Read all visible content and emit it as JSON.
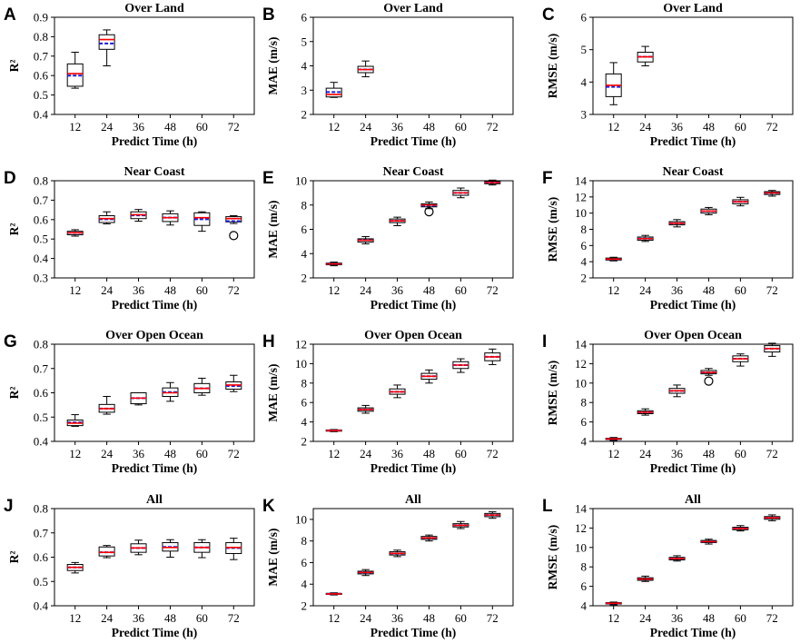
{
  "figure": {
    "colors": {
      "median": "#ff0000",
      "mean": "#1f1fd6",
      "box": "#000000",
      "outlier": "#000000"
    }
  },
  "chart_data": [
    {
      "panel": "A",
      "type": "box",
      "title": "Over Land",
      "xlabel": "Predict Time (h)",
      "ylabel": "R²",
      "categories": [
        "12",
        "24",
        "36",
        "48",
        "60",
        "72"
      ],
      "ylim": [
        0.4,
        0.9
      ],
      "yticks": [
        "0.4",
        "0.5",
        "0.6",
        "0.7",
        "0.8",
        "0.9"
      ],
      "boxes": [
        {
          "x": "12",
          "whislo": 0.535,
          "q1": 0.545,
          "median": 0.61,
          "mean": 0.6,
          "q3": 0.66,
          "whishi": 0.72,
          "outliers": []
        },
        {
          "x": "24",
          "whislo": 0.65,
          "q1": 0.735,
          "median": 0.785,
          "mean": 0.765,
          "q3": 0.81,
          "whishi": 0.835,
          "outliers": []
        }
      ]
    },
    {
      "panel": "B",
      "type": "box",
      "title": "Over Land",
      "xlabel": "Predict Time (h)",
      "ylabel": "MAE (m/s)",
      "categories": [
        "12",
        "24",
        "36",
        "48",
        "60",
        "72"
      ],
      "ylim": [
        2,
        6
      ],
      "yticks": [
        "2",
        "3",
        "4",
        "5",
        "6"
      ],
      "boxes": [
        {
          "x": "12",
          "whislo": 2.7,
          "q1": 2.72,
          "median": 2.82,
          "mean": 2.92,
          "q3": 3.08,
          "whishi": 3.32,
          "outliers": []
        },
        {
          "x": "24",
          "whislo": 3.55,
          "q1": 3.72,
          "median": 3.85,
          "mean": 3.85,
          "q3": 3.98,
          "whishi": 4.2,
          "outliers": []
        }
      ]
    },
    {
      "panel": "C",
      "type": "box",
      "title": "Over Land",
      "xlabel": "Predict Time (h)",
      "ylabel": "RMSE (m/s)",
      "categories": [
        "12",
        "24",
        "36",
        "48",
        "60",
        "72"
      ],
      "ylim": [
        3,
        6
      ],
      "yticks": [
        "3",
        "4",
        "5",
        "6"
      ],
      "boxes": [
        {
          "x": "12",
          "whislo": 3.3,
          "q1": 3.55,
          "median": 3.9,
          "mean": 3.85,
          "q3": 4.25,
          "whishi": 4.6,
          "outliers": []
        },
        {
          "x": "24",
          "whislo": 4.5,
          "q1": 4.62,
          "median": 4.78,
          "mean": 4.78,
          "q3": 4.92,
          "whishi": 5.1,
          "outliers": []
        }
      ]
    },
    {
      "panel": "D",
      "type": "box",
      "title": "Near Coast",
      "xlabel": "Predict Time (h)",
      "ylabel": "R²",
      "categories": [
        "12",
        "24",
        "36",
        "48",
        "60",
        "72"
      ],
      "ylim": [
        0.3,
        0.8
      ],
      "yticks": [
        "0.3",
        "0.4",
        "0.5",
        "0.6",
        "0.7",
        "0.8"
      ],
      "boxes": [
        {
          "x": "12",
          "whislo": 0.515,
          "q1": 0.522,
          "median": 0.532,
          "mean": 0.532,
          "q3": 0.54,
          "whishi": 0.548,
          "outliers": []
        },
        {
          "x": "24",
          "whislo": 0.578,
          "q1": 0.585,
          "median": 0.605,
          "mean": 0.602,
          "q3": 0.62,
          "whishi": 0.64,
          "outliers": []
        },
        {
          "x": "36",
          "whislo": 0.592,
          "q1": 0.605,
          "median": 0.625,
          "mean": 0.622,
          "q3": 0.64,
          "whishi": 0.652,
          "outliers": []
        },
        {
          "x": "48",
          "whislo": 0.572,
          "q1": 0.59,
          "median": 0.61,
          "mean": 0.61,
          "q3": 0.63,
          "whishi": 0.645,
          "outliers": []
        },
        {
          "x": "60",
          "whislo": 0.54,
          "q1": 0.57,
          "median": 0.61,
          "mean": 0.602,
          "q3": 0.635,
          "whishi": 0.64,
          "outliers": []
        },
        {
          "x": "72",
          "whislo": 0.58,
          "q1": 0.588,
          "median": 0.605,
          "mean": 0.592,
          "q3": 0.615,
          "whishi": 0.62,
          "outliers": [
            0.518
          ]
        }
      ]
    },
    {
      "panel": "E",
      "type": "box",
      "title": "Near Coast",
      "xlabel": "Predict Time (h)",
      "ylabel": "MAE (m/s)",
      "categories": [
        "12",
        "24",
        "36",
        "48",
        "60",
        "72"
      ],
      "ylim": [
        2,
        10
      ],
      "yticks": [
        "2",
        "4",
        "6",
        "8",
        "10"
      ],
      "boxes": [
        {
          "x": "12",
          "whislo": 3.0,
          "q1": 3.08,
          "median": 3.15,
          "mean": 3.15,
          "q3": 3.22,
          "whishi": 3.3,
          "outliers": []
        },
        {
          "x": "24",
          "whislo": 4.8,
          "q1": 4.95,
          "median": 5.1,
          "mean": 5.1,
          "q3": 5.22,
          "whishi": 5.4,
          "outliers": []
        },
        {
          "x": "36",
          "whislo": 6.3,
          "q1": 6.55,
          "median": 6.7,
          "mean": 6.7,
          "q3": 6.85,
          "whishi": 7.0,
          "outliers": []
        },
        {
          "x": "48",
          "whislo": 7.7,
          "q1": 7.85,
          "median": 8.0,
          "mean": 7.95,
          "q3": 8.1,
          "whishi": 8.25,
          "outliers": [
            7.45
          ]
        },
        {
          "x": "60",
          "whislo": 8.6,
          "q1": 8.8,
          "median": 9.0,
          "mean": 9.0,
          "q3": 9.2,
          "whishi": 9.4,
          "outliers": []
        },
        {
          "x": "72",
          "whislo": 9.65,
          "q1": 9.75,
          "median": 9.85,
          "mean": 9.85,
          "q3": 9.95,
          "whishi": 10.05,
          "outliers": []
        }
      ]
    },
    {
      "panel": "F",
      "type": "box",
      "title": "Near Coast",
      "xlabel": "Predict Time (h)",
      "ylabel": "RMSE (m/s)",
      "categories": [
        "12",
        "24",
        "36",
        "48",
        "60",
        "72"
      ],
      "ylim": [
        2,
        14
      ],
      "yticks": [
        "2",
        "4",
        "6",
        "8",
        "10",
        "12",
        "14"
      ],
      "boxes": [
        {
          "x": "12",
          "whislo": 4.1,
          "q1": 4.2,
          "median": 4.32,
          "mean": 4.32,
          "q3": 4.45,
          "whishi": 4.55,
          "outliers": []
        },
        {
          "x": "24",
          "whislo": 6.5,
          "q1": 6.65,
          "median": 6.85,
          "mean": 6.85,
          "q3": 7.05,
          "whishi": 7.25,
          "outliers": []
        },
        {
          "x": "36",
          "whislo": 8.3,
          "q1": 8.55,
          "median": 8.75,
          "mean": 8.75,
          "q3": 8.95,
          "whishi": 9.2,
          "outliers": []
        },
        {
          "x": "48",
          "whislo": 9.8,
          "q1": 10.0,
          "median": 10.25,
          "mean": 10.25,
          "q3": 10.5,
          "whishi": 10.7,
          "outliers": []
        },
        {
          "x": "60",
          "whislo": 10.9,
          "q1": 11.15,
          "median": 11.4,
          "mean": 11.4,
          "q3": 11.65,
          "whishi": 11.95,
          "outliers": []
        },
        {
          "x": "72",
          "whislo": 12.1,
          "q1": 12.3,
          "median": 12.5,
          "mean": 12.5,
          "q3": 12.65,
          "whishi": 12.8,
          "outliers": []
        }
      ]
    },
    {
      "panel": "G",
      "type": "box",
      "title": "Over Open Ocean",
      "xlabel": "Predict Time (h)",
      "ylabel": "R²",
      "categories": [
        "12",
        "24",
        "36",
        "48",
        "60",
        "72"
      ],
      "ylim": [
        0.4,
        0.8
      ],
      "yticks": [
        "0.4",
        "0.5",
        "0.6",
        "0.7",
        "0.8"
      ],
      "boxes": [
        {
          "x": "12",
          "whislo": 0.462,
          "q1": 0.465,
          "median": 0.475,
          "mean": 0.478,
          "q3": 0.488,
          "whishi": 0.51,
          "outliers": []
        },
        {
          "x": "24",
          "whislo": 0.512,
          "q1": 0.52,
          "median": 0.535,
          "mean": 0.535,
          "q3": 0.552,
          "whishi": 0.585,
          "outliers": []
        },
        {
          "x": "36",
          "whislo": 0.55,
          "q1": 0.555,
          "median": 0.578,
          "mean": 0.578,
          "q3": 0.6,
          "whishi": 0.6,
          "outliers": []
        },
        {
          "x": "48",
          "whislo": 0.565,
          "q1": 0.585,
          "median": 0.6,
          "mean": 0.603,
          "q3": 0.62,
          "whishi": 0.642,
          "outliers": []
        },
        {
          "x": "60",
          "whislo": 0.59,
          "q1": 0.6,
          "median": 0.618,
          "mean": 0.618,
          "q3": 0.638,
          "whishi": 0.66,
          "outliers": []
        },
        {
          "x": "72",
          "whislo": 0.605,
          "q1": 0.615,
          "median": 0.632,
          "mean": 0.628,
          "q3": 0.645,
          "whishi": 0.672,
          "outliers": []
        }
      ]
    },
    {
      "panel": "H",
      "type": "box",
      "title": "Over Open Ocean",
      "xlabel": "Predict Time (h)",
      "ylabel": "MAE (m/s)",
      "categories": [
        "12",
        "24",
        "36",
        "48",
        "60",
        "72"
      ],
      "ylim": [
        2,
        12
      ],
      "yticks": [
        "2",
        "4",
        "6",
        "8",
        "10",
        "12"
      ],
      "boxes": [
        {
          "x": "12",
          "whislo": 3.0,
          "q1": 3.05,
          "median": 3.12,
          "mean": 3.12,
          "q3": 3.18,
          "whishi": 3.22,
          "outliers": []
        },
        {
          "x": "24",
          "whislo": 4.9,
          "q1": 5.1,
          "median": 5.28,
          "mean": 5.28,
          "q3": 5.45,
          "whishi": 5.7,
          "outliers": []
        },
        {
          "x": "36",
          "whislo": 6.5,
          "q1": 6.85,
          "median": 7.1,
          "mean": 7.1,
          "q3": 7.4,
          "whishi": 7.8,
          "outliers": []
        },
        {
          "x": "48",
          "whislo": 8.0,
          "q1": 8.4,
          "median": 8.7,
          "mean": 8.7,
          "q3": 9.0,
          "whishi": 9.35,
          "outliers": []
        },
        {
          "x": "60",
          "whislo": 9.1,
          "q1": 9.5,
          "median": 9.85,
          "mean": 9.85,
          "q3": 10.2,
          "whishi": 10.5,
          "outliers": []
        },
        {
          "x": "72",
          "whislo": 9.9,
          "q1": 10.3,
          "median": 10.7,
          "mean": 10.7,
          "q3": 11.1,
          "whishi": 11.5,
          "outliers": []
        }
      ]
    },
    {
      "panel": "I",
      "type": "box",
      "title": "Over Open Ocean",
      "xlabel": "Predict Time (h)",
      "ylabel": "RMSE (m/s)",
      "categories": [
        "12",
        "24",
        "36",
        "48",
        "60",
        "72"
      ],
      "ylim": [
        4,
        14
      ],
      "yticks": [
        "4",
        "6",
        "8",
        "10",
        "12",
        "14"
      ],
      "boxes": [
        {
          "x": "12",
          "whislo": 4.1,
          "q1": 4.18,
          "median": 4.25,
          "mean": 4.25,
          "q3": 4.32,
          "whishi": 4.4,
          "outliers": []
        },
        {
          "x": "24",
          "whislo": 6.7,
          "q1": 6.85,
          "median": 7.0,
          "mean": 7.0,
          "q3": 7.15,
          "whishi": 7.35,
          "outliers": []
        },
        {
          "x": "36",
          "whislo": 8.6,
          "q1": 8.95,
          "median": 9.2,
          "mean": 9.2,
          "q3": 9.45,
          "whishi": 9.8,
          "outliers": []
        },
        {
          "x": "48",
          "whislo": 10.8,
          "q1": 10.95,
          "median": 11.1,
          "mean": 11.1,
          "q3": 11.3,
          "whishi": 11.5,
          "outliers": [
            10.2
          ]
        },
        {
          "x": "60",
          "whislo": 11.75,
          "q1": 12.2,
          "median": 12.5,
          "mean": 12.5,
          "q3": 12.8,
          "whishi": 13.0,
          "outliers": []
        },
        {
          "x": "72",
          "whislo": 12.75,
          "q1": 13.2,
          "median": 13.55,
          "mean": 13.55,
          "q3": 13.85,
          "whishi": 14.1,
          "outliers": []
        }
      ]
    },
    {
      "panel": "J",
      "type": "box",
      "title": "All",
      "xlabel": "Predict Time (h)",
      "ylabel": "R²",
      "categories": [
        "12",
        "24",
        "36",
        "48",
        "60",
        "72"
      ],
      "ylim": [
        0.4,
        0.8
      ],
      "yticks": [
        "0.4",
        "0.5",
        "0.6",
        "0.7",
        "0.8"
      ],
      "boxes": [
        {
          "x": "12",
          "whislo": 0.535,
          "q1": 0.545,
          "median": 0.558,
          "mean": 0.558,
          "q3": 0.57,
          "whishi": 0.578,
          "outliers": []
        },
        {
          "x": "24",
          "whislo": 0.598,
          "q1": 0.605,
          "median": 0.62,
          "mean": 0.62,
          "q3": 0.642,
          "whishi": 0.648,
          "outliers": []
        },
        {
          "x": "36",
          "whislo": 0.61,
          "q1": 0.62,
          "median": 0.638,
          "mean": 0.638,
          "q3": 0.655,
          "whishi": 0.67,
          "outliers": []
        },
        {
          "x": "48",
          "whislo": 0.6,
          "q1": 0.625,
          "median": 0.64,
          "mean": 0.642,
          "q3": 0.66,
          "whishi": 0.672,
          "outliers": []
        },
        {
          "x": "60",
          "whislo": 0.598,
          "q1": 0.62,
          "median": 0.64,
          "mean": 0.64,
          "q3": 0.66,
          "whishi": 0.672,
          "outliers": []
        },
        {
          "x": "72",
          "whislo": 0.59,
          "q1": 0.615,
          "median": 0.64,
          "mean": 0.638,
          "q3": 0.66,
          "whishi": 0.678,
          "outliers": []
        }
      ]
    },
    {
      "panel": "K",
      "type": "box",
      "title": "All",
      "xlabel": "Predict Time (h)",
      "ylabel": "MAE (m/s)",
      "categories": [
        "12",
        "24",
        "36",
        "48",
        "60",
        "72"
      ],
      "ylim": [
        2,
        11
      ],
      "yticks": [
        "2",
        "4",
        "6",
        "8",
        "10"
      ],
      "boxes": [
        {
          "x": "12",
          "whislo": 3.0,
          "q1": 3.05,
          "median": 3.1,
          "mean": 3.1,
          "q3": 3.15,
          "whishi": 3.2,
          "outliers": []
        },
        {
          "x": "24",
          "whislo": 4.8,
          "q1": 4.95,
          "median": 5.08,
          "mean": 5.08,
          "q3": 5.2,
          "whishi": 5.35,
          "outliers": []
        },
        {
          "x": "36",
          "whislo": 6.55,
          "q1": 6.7,
          "median": 6.85,
          "mean": 6.85,
          "q3": 7.0,
          "whishi": 7.15,
          "outliers": []
        },
        {
          "x": "48",
          "whislo": 8.0,
          "q1": 8.15,
          "median": 8.28,
          "mean": 8.28,
          "q3": 8.42,
          "whishi": 8.55,
          "outliers": []
        },
        {
          "x": "60",
          "whislo": 9.15,
          "q1": 9.3,
          "median": 9.45,
          "mean": 9.45,
          "q3": 9.6,
          "whishi": 9.8,
          "outliers": []
        },
        {
          "x": "72",
          "whislo": 10.1,
          "q1": 10.25,
          "median": 10.4,
          "mean": 10.4,
          "q3": 10.55,
          "whishi": 10.7,
          "outliers": []
        }
      ]
    },
    {
      "panel": "L",
      "type": "box",
      "title": "All",
      "xlabel": "Predict Time (h)",
      "ylabel": "RMSE (m/s)",
      "categories": [
        "12",
        "24",
        "36",
        "48",
        "60",
        "72"
      ],
      "ylim": [
        4,
        14
      ],
      "yticks": [
        "4",
        "6",
        "8",
        "10",
        "12",
        "14"
      ],
      "boxes": [
        {
          "x": "12",
          "whislo": 4.1,
          "q1": 4.18,
          "median": 4.25,
          "mean": 4.25,
          "q3": 4.32,
          "whishi": 4.38,
          "outliers": []
        },
        {
          "x": "24",
          "whislo": 6.5,
          "q1": 6.62,
          "median": 6.75,
          "mean": 6.75,
          "q3": 6.88,
          "whishi": 7.05,
          "outliers": []
        },
        {
          "x": "36",
          "whislo": 8.6,
          "q1": 8.72,
          "median": 8.85,
          "mean": 8.85,
          "q3": 8.98,
          "whishi": 9.15,
          "outliers": []
        },
        {
          "x": "48",
          "whislo": 10.35,
          "q1": 10.5,
          "median": 10.6,
          "mean": 10.6,
          "q3": 10.72,
          "whishi": 10.85,
          "outliers": []
        },
        {
          "x": "60",
          "whislo": 11.7,
          "q1": 11.82,
          "median": 11.95,
          "mean": 11.95,
          "q3": 12.08,
          "whishi": 12.25,
          "outliers": []
        },
        {
          "x": "72",
          "whislo": 12.75,
          "q1": 12.9,
          "median": 13.05,
          "mean": 13.05,
          "q3": 13.18,
          "whishi": 13.35,
          "outliers": []
        }
      ]
    }
  ]
}
